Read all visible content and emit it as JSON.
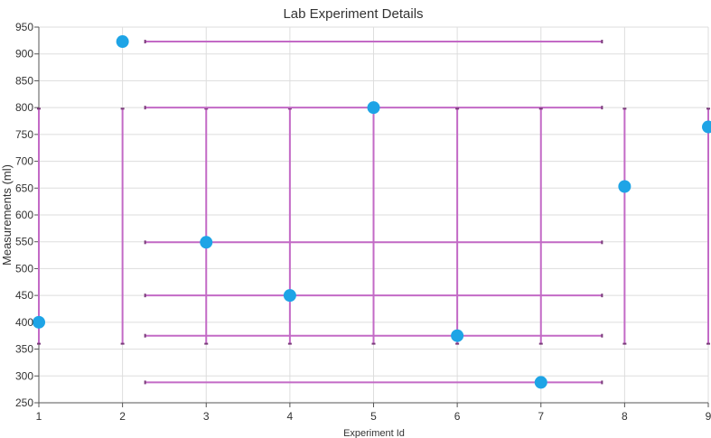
{
  "chart_data": {
    "type": "scatter",
    "title": "Lab Experiment Details",
    "xlabel": "Experiment Id",
    "ylabel": "Measurements (ml)",
    "xlim": [
      1,
      9
    ],
    "ylim": [
      250,
      950
    ],
    "x_ticks": [
      1,
      2,
      3,
      4,
      5,
      6,
      7,
      8,
      9
    ],
    "y_ticks": [
      250,
      300,
      350,
      400,
      450,
      500,
      550,
      600,
      650,
      700,
      750,
      800,
      850,
      900,
      950
    ],
    "grid": true,
    "series": [
      {
        "x": [
          1,
          2,
          3,
          4,
          5,
          6,
          7,
          8,
          9
        ],
        "y": [
          400,
          923,
          549,
          450,
          800,
          375,
          288,
          653,
          764
        ]
      }
    ],
    "error_bars": {
      "horizontal_x_range": [
        2.27,
        7.73
      ],
      "vertical_y_range": [
        360,
        798
      ]
    },
    "colors": {
      "marker": "#1ea4e6",
      "error_bar": "#c36ac6",
      "error_cap": "#7a3a7a",
      "grid": "#dddddd",
      "axis": "#555555"
    }
  }
}
